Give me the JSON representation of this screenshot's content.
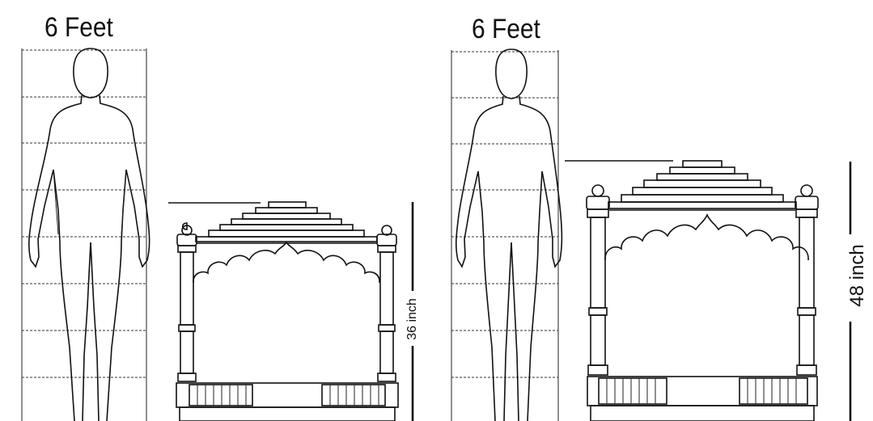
{
  "left": {
    "height_title": "6 Feet",
    "temple_height_label": "36 inch"
  },
  "right": {
    "height_title": "6 Feet",
    "temple_height_label": "48 inch"
  }
}
